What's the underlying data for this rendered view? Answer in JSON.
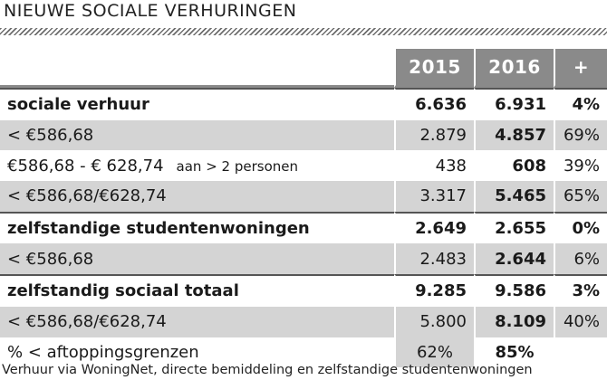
{
  "title": "NIEUWE SOCIALE VERHURINGEN",
  "columns": [
    "2015",
    "2016",
    "+"
  ],
  "rows": [
    {
      "label": "sociale verhuur",
      "note": "",
      "v2015": "6.636",
      "v2016": "6.931",
      "plus": "4%"
    },
    {
      "label": "< €586,68",
      "note": "",
      "v2015": "2.879",
      "v2016": "4.857",
      "plus": "69%"
    },
    {
      "label": "€586,68 - € 628,74",
      "note": "aan > 2 personen",
      "v2015": "438",
      "v2016": "608",
      "plus": "39%"
    },
    {
      "label": "< €586,68/€628,74",
      "note": "",
      "v2015": "3.317",
      "v2016": "5.465",
      "plus": "65%"
    },
    {
      "label": "zelfstandige studentenwoningen",
      "note": "",
      "v2015": "2.649",
      "v2016": "2.655",
      "plus": "0%"
    },
    {
      "label": "< €586,68",
      "note": "",
      "v2015": "2.483",
      "v2016": "2.644",
      "plus": "6%"
    },
    {
      "label": "zelfstandig sociaal totaal",
      "note": "",
      "v2015": "9.285",
      "v2016": "9.586",
      "plus": "3%"
    },
    {
      "label": "< €586,68/€628,74",
      "note": "",
      "v2015": "5.800",
      "v2016": "8.109",
      "plus": "40%"
    },
    {
      "label": "% < aftoppingsgrenzen",
      "note": "",
      "v2015": "62%",
      "v2016": "85%",
      "plus": ""
    }
  ],
  "footnote": "Verhuur via WoningNet, directe bemiddeling en zelfstandige studentenwoningen",
  "colors": {
    "header_bg": "#8a8a8a",
    "shade": "#d4d4d4",
    "hatch": "#6d6d6d"
  }
}
